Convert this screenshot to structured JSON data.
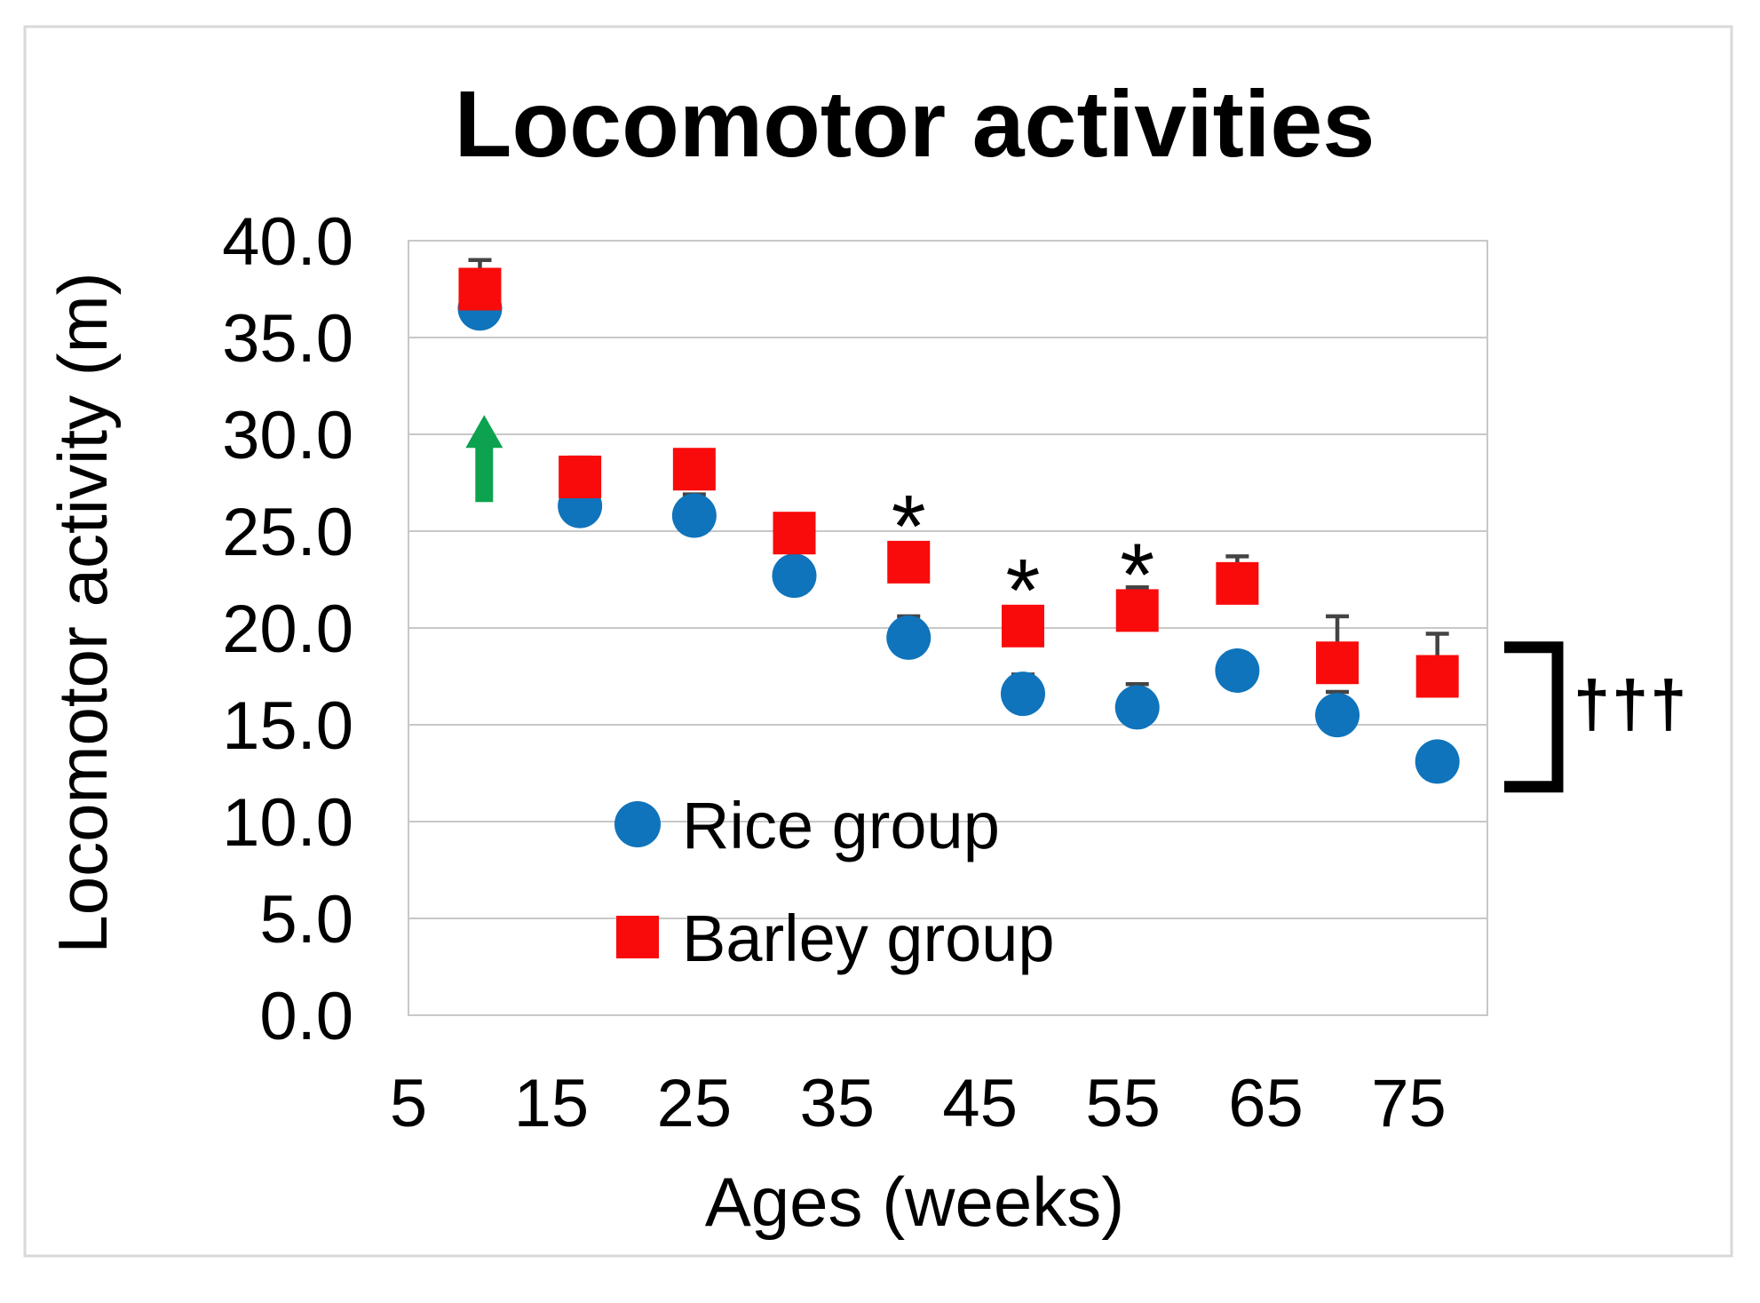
{
  "figure": {
    "background_color": "#FFFFFF",
    "frame_border_color": "#D9D9D9"
  },
  "chart_data": {
    "type": "scatter",
    "title": "Locomotor activities",
    "xlabel": "Ages (weeks)",
    "ylabel": "Locomotor activity (m)",
    "xlim": [
      5,
      80.5
    ],
    "ylim": [
      0,
      40
    ],
    "grid": true,
    "grid_color": "#C8C8C8",
    "error_bar_color": "#444444",
    "x_ticks": [
      5,
      15,
      25,
      35,
      45,
      55,
      65,
      75
    ],
    "y_tick_labels": [
      "0.0",
      "5.0",
      "10.0",
      "15.0",
      "20.0",
      "25.0",
      "30.0",
      "35.0",
      "40.0"
    ],
    "y_tick_values": [
      0,
      5,
      10,
      15,
      20,
      25,
      30,
      35,
      40
    ],
    "x": [
      10,
      17,
      25,
      32,
      40,
      48,
      56,
      63,
      70,
      77
    ],
    "series": [
      {
        "name": "Rice group",
        "marker": "circle",
        "color": "#0F74BB",
        "values": [
          36.5,
          26.3,
          25.8,
          22.7,
          19.5,
          16.6,
          15.9,
          17.8,
          15.5,
          13.1
        ],
        "upper_error": [
          0.8,
          0.6,
          1.1,
          0.6,
          1.1,
          1.0,
          1.2,
          0.9,
          1.2,
          0.6
        ]
      },
      {
        "name": "Barley group",
        "marker": "square",
        "color": "#F90B0B",
        "values": [
          37.5,
          27.8,
          28.2,
          24.9,
          23.4,
          20.1,
          20.9,
          22.3,
          18.2,
          17.5
        ],
        "upper_error": [
          1.5,
          1.0,
          0.7,
          0.6,
          0.7,
          0.8,
          1.2,
          1.4,
          2.4,
          2.2
        ]
      }
    ],
    "legend": {
      "position": "inside-bottom-left",
      "entries": [
        "Rice group",
        "Barley group"
      ]
    },
    "annotations": {
      "asterisk_symbol": "*",
      "asterisk_weeks": [
        40,
        48,
        56
      ],
      "asterisk_offset_above_barley": 2.8,
      "green_arrow": {
        "description": "upward arrow",
        "color": "#0DA24F",
        "week": 10.3,
        "value_from": 26.5,
        "value_to": 31.0
      },
      "dagger_bracket": {
        "symbol": "†††",
        "value_top": 19.0,
        "value_bottom": 11.8
      }
    }
  }
}
